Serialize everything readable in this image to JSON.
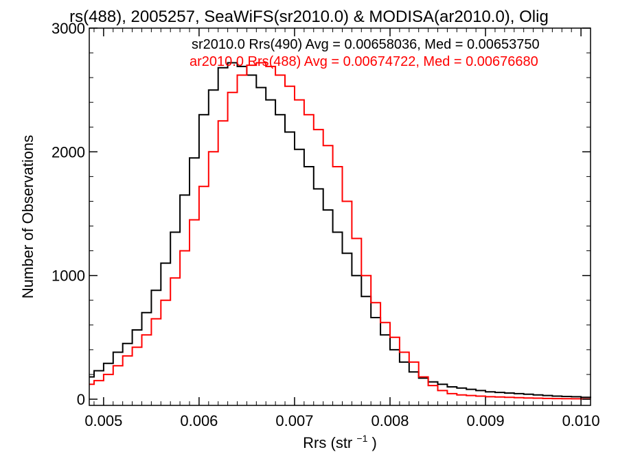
{
  "chart_data": {
    "type": "line",
    "title": "rs(488), 2005257, SeaWiFS(sr2010.0) & MODISA(ar2010.0), Olig",
    "xlabel": "Rrs (str",
    "xlabel_sup": "−1",
    "xlabel_close": ")",
    "ylabel": "Number of Observations",
    "xlim": [
      0.00485,
      0.0101
    ],
    "ylim": [
      -50,
      3000
    ],
    "grid": false,
    "legend_position": "top-right",
    "x_ticks": [
      0.005,
      0.006,
      0.007,
      0.008,
      0.009,
      0.01
    ],
    "x_tick_labels": [
      "0.005",
      "0.006",
      "0.007",
      "0.008",
      "0.009",
      "0.010"
    ],
    "y_ticks": [
      0,
      1000,
      2000,
      3000
    ],
    "y_tick_labels": [
      "0",
      "1000",
      "2000",
      "3000"
    ],
    "series": [
      {
        "name": "sr2010.0 Rrs(490) Avg = 0.00658036, Med = 0.00653750",
        "color": "#000000",
        "x": [
          0.00485,
          0.0049,
          0.005,
          0.0051,
          0.0052,
          0.0053,
          0.0054,
          0.0055,
          0.0056,
          0.0057,
          0.0058,
          0.0059,
          0.006,
          0.0061,
          0.0062,
          0.0063,
          0.0064,
          0.0065,
          0.0066,
          0.0067,
          0.0068,
          0.0069,
          0.007,
          0.0071,
          0.0072,
          0.0073,
          0.0074,
          0.0075,
          0.0076,
          0.0077,
          0.0078,
          0.0079,
          0.008,
          0.0081,
          0.0082,
          0.0083,
          0.0084,
          0.0085,
          0.0086,
          0.0087,
          0.0088,
          0.0089,
          0.009,
          0.0091,
          0.0092,
          0.0093,
          0.0094,
          0.0095,
          0.0096,
          0.0097,
          0.0098,
          0.0099,
          0.01,
          0.0101
        ],
        "y": [
          180,
          230,
          290,
          380,
          450,
          560,
          700,
          880,
          1100,
          1350,
          1650,
          1950,
          2300,
          2500,
          2680,
          2720,
          2690,
          2620,
          2520,
          2420,
          2300,
          2160,
          2020,
          1880,
          1700,
          1530,
          1350,
          1180,
          1000,
          830,
          660,
          520,
          400,
          300,
          220,
          170,
          140,
          120,
          100,
          90,
          80,
          70,
          60,
          55,
          50,
          45,
          40,
          35,
          30,
          25,
          22,
          20,
          15,
          10
        ]
      },
      {
        "name": "ar2010.0 Rrs(488) Avg = 0.00674722, Med = 0.00676680",
        "color": "#ff0000",
        "x": [
          0.00485,
          0.0049,
          0.005,
          0.0051,
          0.0052,
          0.0053,
          0.0054,
          0.0055,
          0.0056,
          0.0057,
          0.0058,
          0.0059,
          0.006,
          0.0061,
          0.0062,
          0.0063,
          0.0064,
          0.0065,
          0.0066,
          0.0067,
          0.0068,
          0.0069,
          0.007,
          0.0071,
          0.0072,
          0.0073,
          0.0074,
          0.0075,
          0.0076,
          0.0077,
          0.0078,
          0.0079,
          0.008,
          0.0081,
          0.0082,
          0.0083,
          0.0084,
          0.0085,
          0.0086,
          0.0087,
          0.0088,
          0.0089,
          0.009,
          0.0091,
          0.0092,
          0.0093,
          0.0094,
          0.0095,
          0.0096,
          0.0097,
          0.0098,
          0.0099,
          0.01,
          0.0101
        ],
        "y": [
          120,
          150,
          200,
          270,
          350,
          420,
          520,
          650,
          800,
          980,
          1200,
          1450,
          1720,
          2000,
          2250,
          2480,
          2620,
          2700,
          2720,
          2690,
          2620,
          2530,
          2420,
          2300,
          2180,
          2050,
          1880,
          1600,
          1300,
          1000,
          780,
          620,
          500,
          380,
          300,
          180,
          110,
          70,
          45,
          35,
          30,
          25,
          20,
          18,
          15,
          12,
          10,
          8,
          6,
          5,
          4,
          3,
          2,
          2
        ]
      }
    ]
  }
}
